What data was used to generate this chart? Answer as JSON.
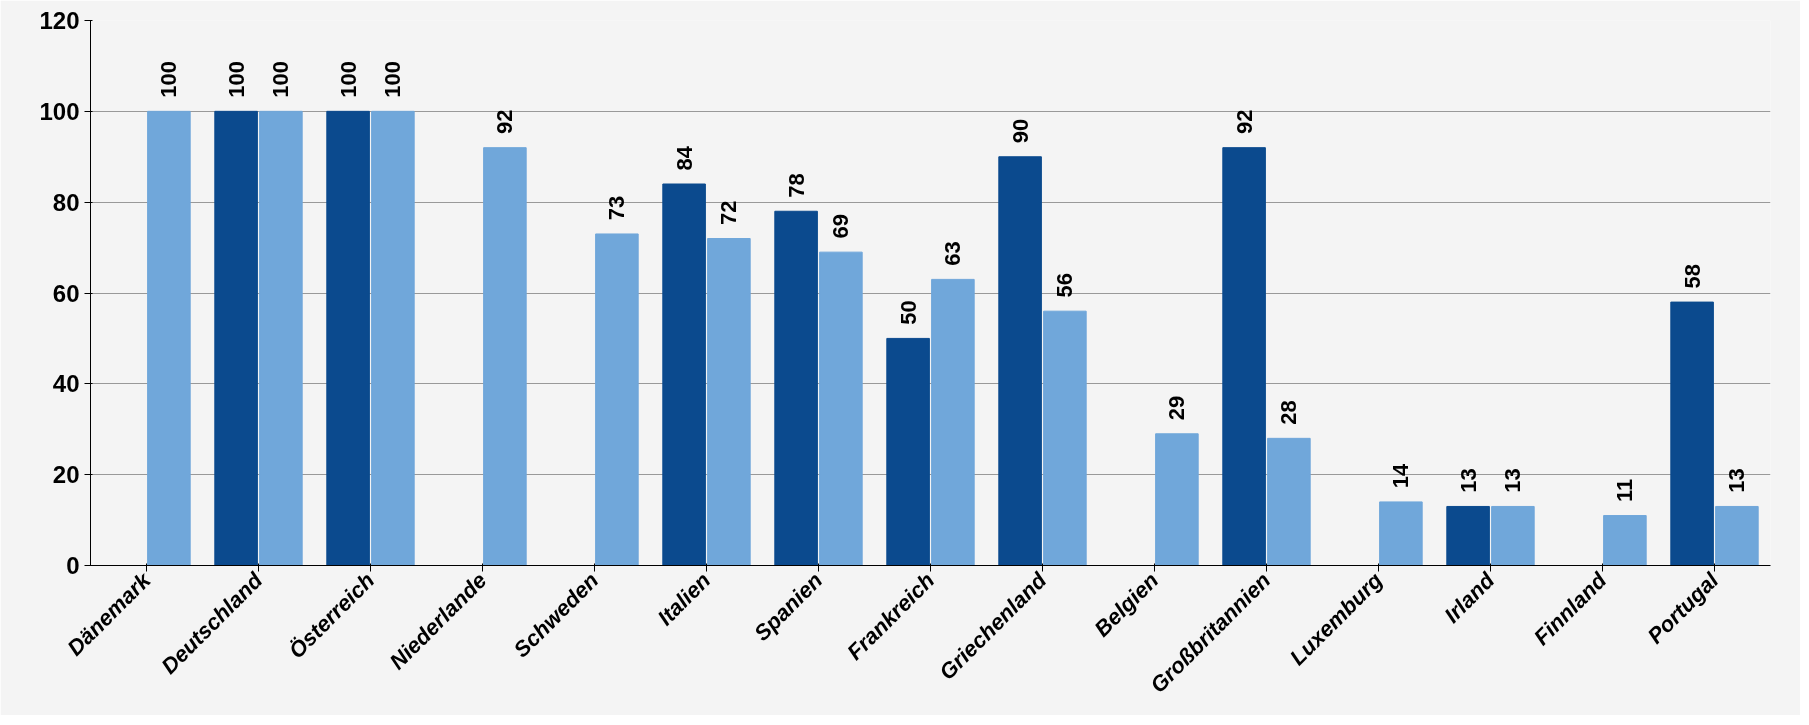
{
  "chart_data": {
    "type": "bar",
    "categories": [
      "Dänemark",
      "Deutschland",
      "Österreich",
      "Niederlande",
      "Schweden",
      "Italien",
      "Spanien",
      "Frankreich",
      "Griechenland",
      "Belgien",
      "Großbritannien",
      "Luxemburg",
      "Irland",
      "Finnland",
      "Portugal"
    ],
    "series": [
      {
        "color": "#0b4a8e",
        "values": [
          null,
          100,
          100,
          null,
          null,
          84,
          78,
          50,
          90,
          null,
          92,
          null,
          13,
          null,
          58
        ]
      },
      {
        "color": "#70a7da",
        "values": [
          100,
          100,
          100,
          92,
          73,
          72,
          69,
          63,
          56,
          29,
          28,
          14,
          13,
          11,
          13
        ]
      }
    ],
    "ylim": [
      0,
      120
    ],
    "yticks": [
      0,
      20,
      40,
      60,
      80,
      100,
      120
    ],
    "grid": "y",
    "data_labels": true
  }
}
